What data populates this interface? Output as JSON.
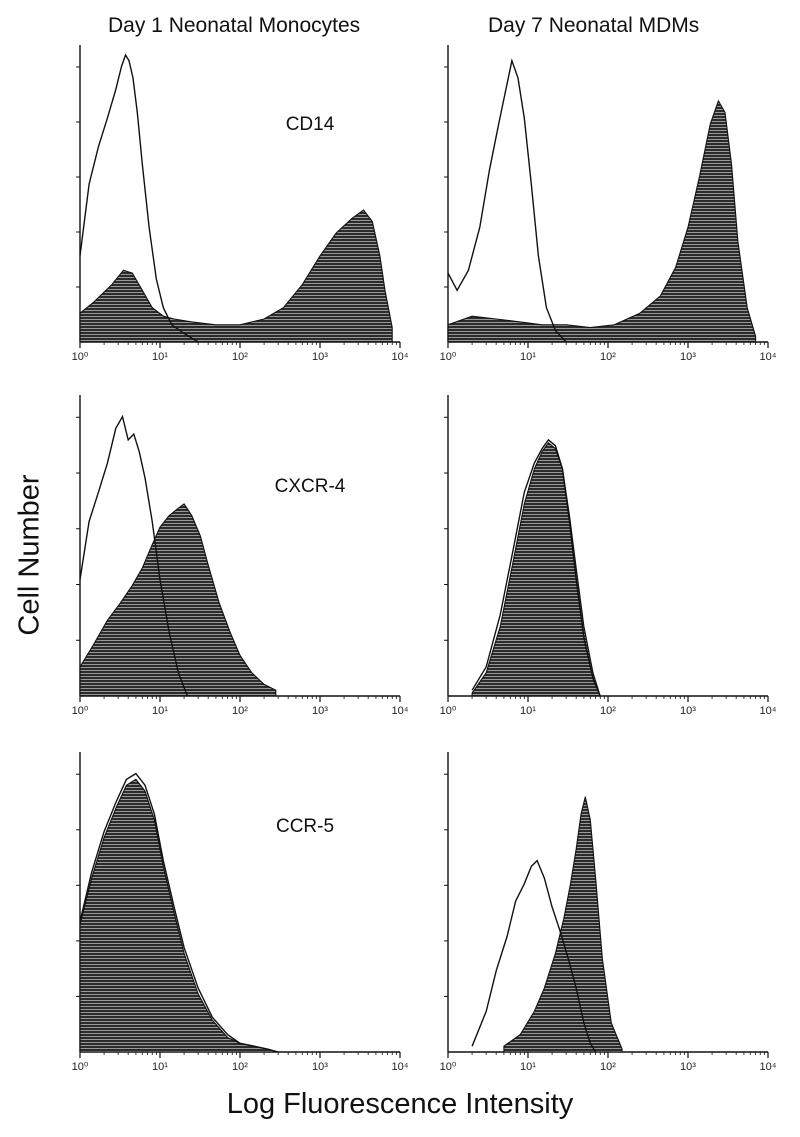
{
  "figure": {
    "column_titles": [
      "Day 1 Neonatal Monocytes",
      "Day 7 Neonatal MDMs"
    ],
    "y_axis_label": "Cell Number",
    "x_axis_label": "Log Fluorescence Intensity",
    "panel_labels": [
      "CD14",
      "CXCR-4",
      "CCR-5"
    ]
  },
  "colors": {
    "line": "#111111",
    "fill": "#2b2b2b",
    "hatch": "#c8c8c8"
  },
  "chart_data": [
    {
      "type": "area",
      "row": 0,
      "col": 0,
      "marker": "CD14",
      "x_scale": "log",
      "xlim": [
        1,
        10000
      ],
      "x_ticks": [
        "10⁰",
        "10¹",
        "10²",
        "10³",
        "10⁴"
      ],
      "ylim": [
        0,
        100
      ],
      "series": [
        {
          "role": "control-outline",
          "x": [
            1,
            1.3,
            1.7,
            2.2,
            2.8,
            3.3,
            3.7,
            4.1,
            4.6,
            5.2,
            6,
            7.3,
            9,
            11,
            14,
            20,
            30
          ],
          "y": [
            30,
            55,
            68,
            78,
            88,
            96,
            100,
            98,
            92,
            80,
            62,
            40,
            22,
            12,
            6,
            3,
            0
          ]
        },
        {
          "role": "stained-filled",
          "x": [
            1,
            1.5,
            2.5,
            3.5,
            4.5,
            6,
            8,
            11,
            15,
            25,
            50,
            100,
            200,
            350,
            600,
            1000,
            1600,
            2500,
            3500,
            4500,
            5600,
            6500,
            8000
          ],
          "y": [
            10,
            14,
            20,
            25,
            24,
            18,
            12,
            9,
            8,
            7,
            6,
            6,
            8,
            12,
            20,
            30,
            38,
            43,
            46,
            42,
            30,
            18,
            5
          ]
        }
      ]
    },
    {
      "type": "area",
      "row": 0,
      "col": 1,
      "marker": "CD14",
      "x_scale": "log",
      "xlim": [
        1,
        10000
      ],
      "x_ticks": [
        "10⁰",
        "10¹",
        "10²",
        "10³",
        "10⁴"
      ],
      "ylim": [
        0,
        100
      ],
      "series": [
        {
          "role": "control-outline",
          "x": [
            1,
            1.3,
            1.8,
            2.5,
            3.3,
            4.3,
            5.3,
            6.3,
            7.5,
            9,
            11,
            13.5,
            17,
            22,
            30
          ],
          "y": [
            24,
            18,
            25,
            40,
            60,
            76,
            88,
            98,
            92,
            78,
            55,
            30,
            12,
            4,
            0
          ]
        },
        {
          "role": "stained-filled",
          "x": [
            1,
            2,
            4,
            8,
            15,
            30,
            60,
            120,
            250,
            450,
            700,
            1000,
            1400,
            1900,
            2400,
            2900,
            3500,
            4200,
            5500,
            7000
          ],
          "y": [
            6,
            9,
            8,
            7,
            6,
            6,
            5,
            6,
            10,
            16,
            26,
            40,
            58,
            76,
            84,
            80,
            62,
            35,
            12,
            2
          ]
        }
      ]
    },
    {
      "type": "area",
      "row": 1,
      "col": 0,
      "marker": "CXCR-4",
      "x_scale": "log",
      "xlim": [
        1,
        10000
      ],
      "x_ticks": [
        "10⁰",
        "10¹",
        "10²",
        "10³",
        "10⁴"
      ],
      "ylim": [
        0,
        100
      ],
      "series": [
        {
          "role": "control-outline",
          "x": [
            1,
            1.3,
            1.7,
            2.2,
            2.8,
            3.4,
            4,
            4.7,
            5.5,
            6.5,
            8,
            10,
            13,
            17,
            22
          ],
          "y": [
            40,
            60,
            70,
            80,
            92,
            96,
            88,
            90,
            84,
            75,
            60,
            40,
            22,
            8,
            0
          ]
        },
        {
          "role": "stained-filled",
          "x": [
            1,
            1.5,
            2.2,
            3.2,
            4.5,
            6,
            8,
            10,
            13,
            16,
            20,
            25,
            32,
            40,
            55,
            75,
            100,
            140,
            200,
            280
          ],
          "y": [
            10,
            18,
            26,
            32,
            38,
            44,
            52,
            58,
            62,
            64,
            66,
            62,
            55,
            45,
            32,
            22,
            14,
            8,
            4,
            2
          ]
        }
      ]
    },
    {
      "type": "area",
      "row": 1,
      "col": 1,
      "marker": "",
      "x_scale": "log",
      "xlim": [
        1,
        10000
      ],
      "x_ticks": [
        "10⁰",
        "10¹",
        "10²",
        "10³",
        "10⁴"
      ],
      "ylim": [
        0,
        100
      ],
      "series": [
        {
          "role": "control-outline",
          "x": [
            2,
            3,
            4.5,
            6.5,
            9,
            12,
            15,
            18,
            22,
            27,
            33,
            40,
            50,
            65,
            80
          ],
          "y": [
            2,
            10,
            28,
            50,
            70,
            80,
            85,
            88,
            86,
            78,
            60,
            40,
            20,
            6,
            0
          ]
        },
        {
          "role": "stained-filled",
          "x": [
            2,
            3,
            4.5,
            6.5,
            9,
            12,
            15,
            18,
            22,
            27,
            33,
            40,
            50,
            65,
            80
          ],
          "y": [
            1,
            8,
            24,
            46,
            66,
            78,
            84,
            87,
            85,
            78,
            62,
            44,
            24,
            8,
            0
          ]
        }
      ]
    },
    {
      "type": "area",
      "row": 2,
      "col": 0,
      "marker": "CCR-5",
      "x_scale": "log",
      "xlim": [
        1,
        10000
      ],
      "x_ticks": [
        "10⁰",
        "10¹",
        "10²",
        "10³",
        "10⁴"
      ],
      "ylim": [
        0,
        100
      ],
      "series": [
        {
          "role": "control-outline",
          "x": [
            1,
            1.4,
            2,
            2.8,
            3.8,
            5,
            6.5,
            8.5,
            11,
            15,
            20,
            30,
            45,
            70,
            100,
            150,
            220,
            300
          ],
          "y": [
            45,
            62,
            76,
            86,
            94,
            96,
            92,
            82,
            66,
            50,
            36,
            22,
            12,
            6,
            3,
            2,
            1,
            0
          ]
        },
        {
          "role": "stained-filled",
          "x": [
            1,
            1.4,
            2,
            2.8,
            3.8,
            5,
            6.5,
            8.5,
            11,
            15,
            20,
            30,
            45,
            70,
            100,
            150,
            220,
            300
          ],
          "y": [
            44,
            60,
            74,
            84,
            92,
            94,
            90,
            80,
            64,
            48,
            34,
            20,
            11,
            5,
            3,
            2,
            1,
            0
          ]
        }
      ]
    },
    {
      "type": "area",
      "row": 2,
      "col": 1,
      "marker": "",
      "x_scale": "log",
      "xlim": [
        1,
        10000
      ],
      "x_ticks": [
        "10⁰",
        "10¹",
        "10²",
        "10³",
        "10⁴"
      ],
      "ylim": [
        0,
        100
      ],
      "series": [
        {
          "role": "control-outline",
          "x": [
            2,
            3,
            4,
            5.5,
            7,
            9,
            11,
            13,
            16,
            20,
            25,
            32,
            40,
            50,
            60,
            70
          ],
          "y": [
            2,
            14,
            28,
            40,
            52,
            58,
            64,
            66,
            60,
            50,
            42,
            32,
            22,
            10,
            3,
            0
          ]
        },
        {
          "role": "stained-filled",
          "x": [
            5,
            8,
            12,
            16,
            22,
            28,
            34,
            40,
            46,
            52,
            60,
            70,
            85,
            110,
            150
          ],
          "y": [
            2,
            6,
            14,
            22,
            34,
            46,
            58,
            70,
            82,
            88,
            80,
            60,
            32,
            10,
            1
          ]
        }
      ]
    }
  ]
}
